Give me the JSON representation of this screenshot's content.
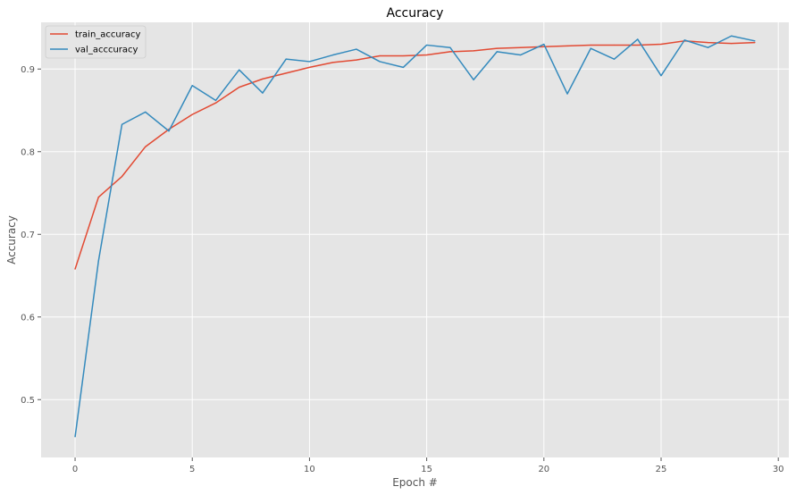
{
  "chart_data": {
    "type": "line",
    "title": "Accuracy",
    "xlabel": "Epoch #",
    "ylabel": "Accuracy",
    "x": [
      0,
      1,
      2,
      3,
      4,
      5,
      6,
      7,
      8,
      9,
      10,
      11,
      12,
      13,
      14,
      15,
      16,
      17,
      18,
      19,
      20,
      21,
      22,
      23,
      24,
      25,
      26,
      27,
      28,
      29
    ],
    "xlim": [
      -1.45,
      30.45
    ],
    "ylim": [
      0.43,
      0.9565
    ],
    "xticks": [
      0,
      5,
      10,
      15,
      20,
      25,
      30
    ],
    "yticks": [
      0.5,
      0.6,
      0.7,
      0.8,
      0.9
    ],
    "xtick_labels": [
      "0",
      "5",
      "10",
      "15",
      "20",
      "25",
      "30"
    ],
    "ytick_labels": [
      "0.5",
      "0.6",
      "0.7",
      "0.8",
      "0.9"
    ],
    "grid": true,
    "legend_position": "top-left",
    "background_color": "#e5e5e5",
    "grid_color": "#ffffff",
    "series": [
      {
        "name": "train_accuracy",
        "color": "#e24a33",
        "values": [
          0.658,
          0.745,
          0.77,
          0.806,
          0.827,
          0.845,
          0.859,
          0.878,
          0.888,
          0.895,
          0.902,
          0.908,
          0.911,
          0.916,
          0.916,
          0.917,
          0.921,
          0.922,
          0.925,
          0.926,
          0.927,
          0.928,
          0.929,
          0.929,
          0.929,
          0.93,
          0.934,
          0.932,
          0.931,
          0.932
        ]
      },
      {
        "name": "val_acccuracy",
        "color": "#348abd",
        "values": [
          0.455,
          0.668,
          0.833,
          0.848,
          0.825,
          0.88,
          0.862,
          0.899,
          0.871,
          0.912,
          0.909,
          0.917,
          0.924,
          0.909,
          0.902,
          0.929,
          0.926,
          0.887,
          0.921,
          0.917,
          0.93,
          0.87,
          0.925,
          0.912,
          0.936,
          0.892,
          0.935,
          0.926,
          0.94,
          0.934
        ]
      }
    ]
  }
}
